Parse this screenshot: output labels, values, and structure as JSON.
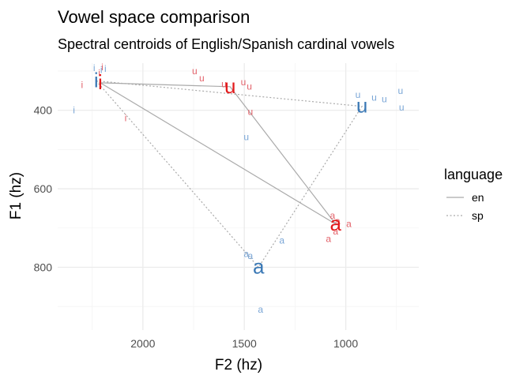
{
  "chart_data": {
    "type": "scatter",
    "title": "Vowel space comparison",
    "subtitle": "Spectral centroids of English/Spanish cardinal vowels",
    "xlabel": "F2 (hz)",
    "ylabel": "F1 (hz)",
    "x_reversed": true,
    "y_reversed": true,
    "xlim": [
      2420,
      640
    ],
    "ylim": [
      280,
      960
    ],
    "x_ticks": [
      2000,
      1500,
      1000
    ],
    "x_tick_labels": [
      "2000",
      "1500",
      "1000"
    ],
    "y_ticks": [
      400,
      600,
      800
    ],
    "y_tick_labels": [
      "400",
      "600",
      "800"
    ],
    "grid": true,
    "legend": {
      "title": "language",
      "position": "right",
      "items": [
        {
          "label": "en",
          "line": "solid"
        },
        {
          "label": "sp",
          "line": "dotted"
        }
      ]
    },
    "colors": {
      "en": "#e31a1c",
      "sp": "#3a78b5",
      "en_tokens": "#e3626a",
      "sp_tokens": "#7aa6d6",
      "en_line": "#aaaaaa",
      "sp_line": "#aaaaaa"
    },
    "series": [
      {
        "name": "en",
        "centroids": [
          {
            "vowel": "i",
            "x": 2210,
            "y": 330
          },
          {
            "vowel": "u",
            "x": 1570,
            "y": 340
          },
          {
            "vowel": "a",
            "x": 1050,
            "y": 690
          }
        ],
        "tokens": [
          {
            "vowel": "i",
            "x": 2200,
            "y": 290
          },
          {
            "vowel": "i",
            "x": 2215,
            "y": 305
          },
          {
            "vowel": "i",
            "x": 2300,
            "y": 335
          },
          {
            "vowel": "i",
            "x": 2085,
            "y": 420
          },
          {
            "vowel": "u",
            "x": 1745,
            "y": 300
          },
          {
            "vowel": "u",
            "x": 1710,
            "y": 318
          },
          {
            "vowel": "u",
            "x": 1600,
            "y": 333
          },
          {
            "vowel": "u",
            "x": 1505,
            "y": 328
          },
          {
            "vowel": "u",
            "x": 1475,
            "y": 339
          },
          {
            "vowel": "u",
            "x": 1470,
            "y": 404
          },
          {
            "vowel": "a",
            "x": 1065,
            "y": 668
          },
          {
            "vowel": "a",
            "x": 1040,
            "y": 682
          },
          {
            "vowel": "a",
            "x": 985,
            "y": 689
          },
          {
            "vowel": "a",
            "x": 1050,
            "y": 709
          },
          {
            "vowel": "a",
            "x": 1085,
            "y": 728
          }
        ]
      },
      {
        "name": "sp",
        "centroids": [
          {
            "vowel": "i",
            "x": 2230,
            "y": 325
          },
          {
            "vowel": "u",
            "x": 920,
            "y": 390
          },
          {
            "vowel": "a",
            "x": 1430,
            "y": 800
          }
        ],
        "tokens": [
          {
            "vowel": "i",
            "x": 2240,
            "y": 292
          },
          {
            "vowel": "i",
            "x": 2185,
            "y": 294
          },
          {
            "vowel": "i",
            "x": 2205,
            "y": 297
          },
          {
            "vowel": "i",
            "x": 2340,
            "y": 400
          },
          {
            "vowel": "u",
            "x": 940,
            "y": 360
          },
          {
            "vowel": "u",
            "x": 860,
            "y": 368
          },
          {
            "vowel": "u",
            "x": 810,
            "y": 372
          },
          {
            "vowel": "u",
            "x": 730,
            "y": 350
          },
          {
            "vowel": "u",
            "x": 725,
            "y": 393
          },
          {
            "vowel": "u",
            "x": 1490,
            "y": 468
          },
          {
            "vowel": "a",
            "x": 1490,
            "y": 766
          },
          {
            "vowel": "a",
            "x": 1470,
            "y": 771
          },
          {
            "vowel": "a",
            "x": 1315,
            "y": 732
          },
          {
            "vowel": "a",
            "x": 1420,
            "y": 908
          }
        ]
      }
    ]
  }
}
